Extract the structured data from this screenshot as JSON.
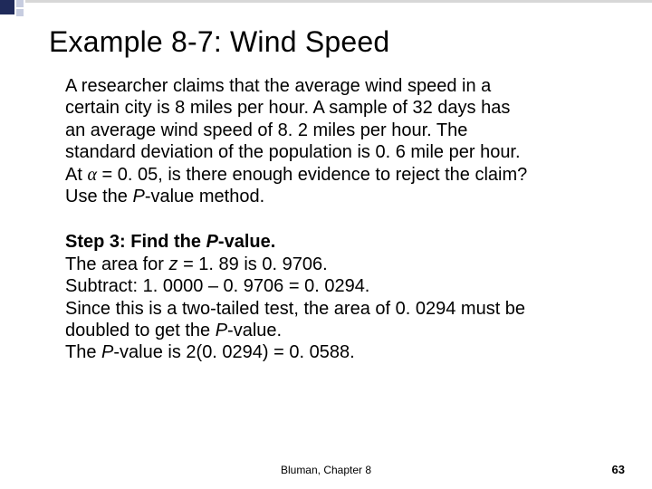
{
  "accent": {
    "dark_color": "#1f2a5a",
    "light_color": "#c7cde0",
    "bar_color": "#d7d7d7"
  },
  "title": "Example 8-7: Wind Speed",
  "paragraph": {
    "l1": "A researcher claims that the average wind speed in a",
    "l2": "certain city is 8 miles per hour.  A sample of 32 days has",
    "l3": "an average wind speed of 8. 2 miles per hour. The",
    "l4": "standard deviation of the population is 0. 6 mile per hour.",
    "l5a": "At ",
    "l5b": " = 0. 05, is there enough evidence to reject the claim?",
    "l6a": "Use the ",
    "l6b": "P",
    "l6c": "-value method."
  },
  "step": {
    "heading_a": "Step 3: Find the ",
    "heading_b": "P",
    "heading_c": "-value.",
    "s1a": "The area for ",
    "s1b": "z",
    "s1c": " = 1. 89 is 0. 9706.",
    "s2": "Subtract: 1. 0000 – 0. 9706 = 0. 0294.",
    "s3": "Since this is a two-tailed test, the area of 0. 0294 must be",
    "s4a": "doubled to get the ",
    "s4b": "P",
    "s4c": "-value.",
    "s5a": "The ",
    "s5b": "P",
    "s5c": "-value is 2(0. 0294) = 0. 0588."
  },
  "footer": "Bluman, Chapter 8",
  "page": "63",
  "typography": {
    "title_fontsize": 32,
    "body_fontsize": 20,
    "footer_fontsize": 12,
    "page_fontsize": 13,
    "text_color": "#000000",
    "background_color": "#ffffff"
  }
}
